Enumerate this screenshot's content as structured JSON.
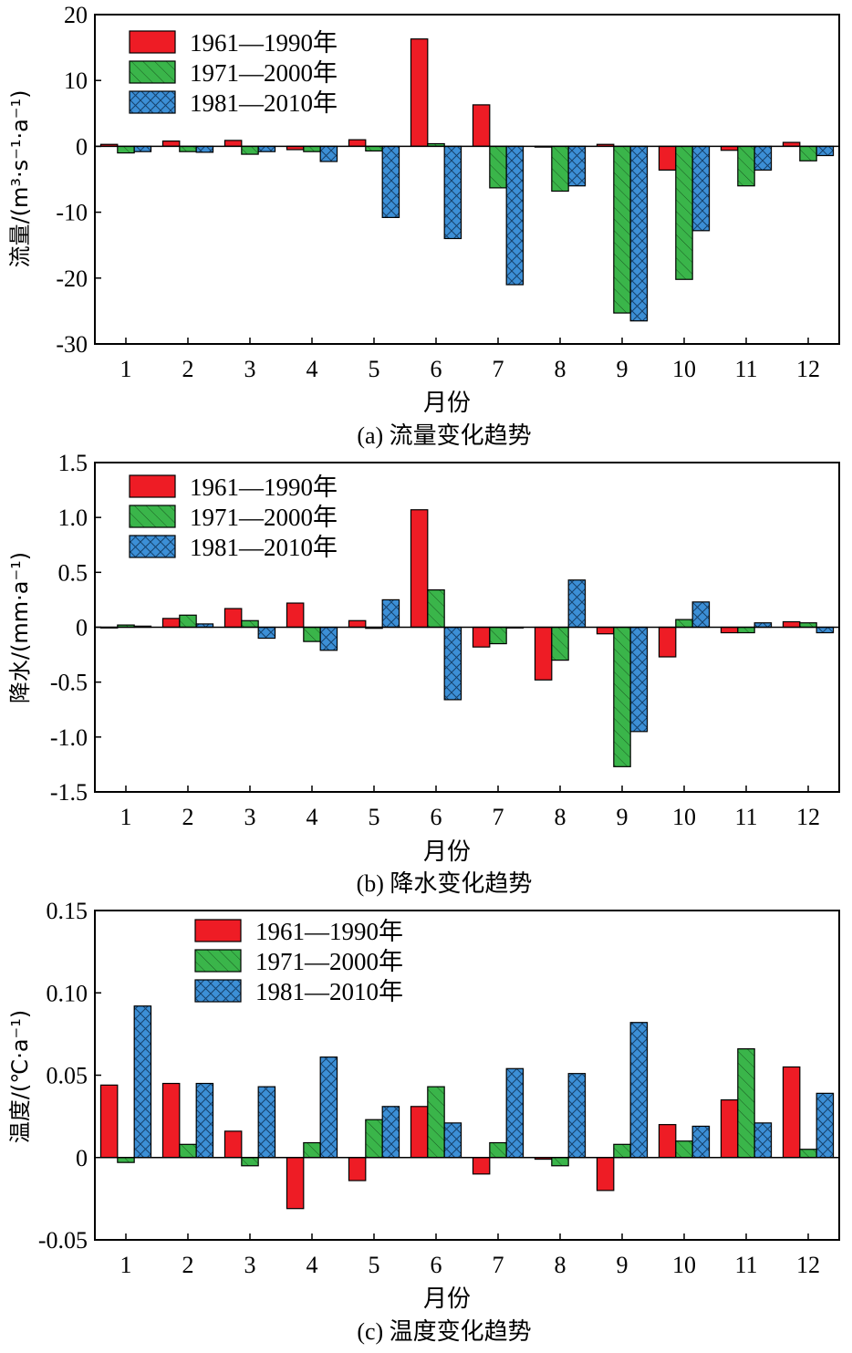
{
  "colors": {
    "s1": "#ee1c25",
    "s2": "#3ab54a",
    "s3": "#3c8fd6",
    "axis": "#000000"
  },
  "chart_data": [
    {
      "type": "bar",
      "title": "",
      "caption": "(a) 流量变化趋势",
      "xlabel": "月份",
      "ylabel": "流量/(m³·s⁻¹·a⁻¹)",
      "categories": [
        "1",
        "2",
        "3",
        "4",
        "5",
        "6",
        "7",
        "8",
        "9",
        "10",
        "11",
        "12"
      ],
      "ylim": [
        -30,
        20
      ],
      "yticks": [
        20,
        10,
        0,
        -10,
        -20,
        -30
      ],
      "ytick_labels": [
        "20",
        "10",
        "0",
        "-10",
        "-20",
        "-30"
      ],
      "legend_position": "top-left",
      "series": [
        {
          "name": "1961—1990年",
          "pattern": "solid",
          "values": [
            0.3,
            0.8,
            0.9,
            -0.5,
            1.0,
            16.3,
            6.3,
            -0.1,
            0.3,
            -3.6,
            -0.6,
            0.6
          ]
        },
        {
          "name": "1971—2000年",
          "pattern": "hatch",
          "values": [
            -1.0,
            -0.8,
            -1.2,
            -0.8,
            -0.7,
            0.4,
            -6.3,
            -6.8,
            -25.3,
            -20.2,
            -6.0,
            -2.2
          ]
        },
        {
          "name": "1981—2010年",
          "pattern": "crosshatch",
          "values": [
            -0.8,
            -0.9,
            -0.8,
            -2.3,
            -10.8,
            -14.0,
            -21.0,
            -6.0,
            -26.5,
            -12.8,
            -3.6,
            -1.4
          ]
        }
      ]
    },
    {
      "type": "bar",
      "title": "",
      "caption": "(b) 降水变化趋势",
      "xlabel": "月份",
      "ylabel": "降水/(mm·a⁻¹)",
      "categories": [
        "1",
        "2",
        "3",
        "4",
        "5",
        "6",
        "7",
        "8",
        "9",
        "10",
        "11",
        "12"
      ],
      "ylim": [
        -1.5,
        1.5
      ],
      "yticks": [
        1.5,
        1.0,
        0.5,
        0,
        -0.5,
        -1.0,
        -1.5
      ],
      "ytick_labels": [
        "1.5",
        "1.0",
        "0.5",
        "0",
        "-0.5",
        "-1.0",
        "-1.5"
      ],
      "legend_position": "top-left",
      "series": [
        {
          "name": "1961—1990年",
          "pattern": "solid",
          "values": [
            0.0,
            0.08,
            0.17,
            0.22,
            0.06,
            1.07,
            -0.18,
            -0.48,
            -0.06,
            -0.27,
            -0.05,
            0.05
          ]
        },
        {
          "name": "1971—2000年",
          "pattern": "hatch",
          "values": [
            0.02,
            0.11,
            0.06,
            -0.13,
            -0.01,
            0.34,
            -0.15,
            -0.3,
            -1.27,
            0.07,
            -0.05,
            0.04
          ]
        },
        {
          "name": "1981—2010年",
          "pattern": "crosshatch",
          "values": [
            0.01,
            0.03,
            -0.1,
            -0.21,
            0.25,
            -0.66,
            0.0,
            0.43,
            -0.95,
            0.23,
            0.04,
            -0.05
          ]
        }
      ]
    },
    {
      "type": "bar",
      "title": "",
      "caption": "(c) 温度变化趋势",
      "xlabel": "月份",
      "ylabel": "温度/(℃·a⁻¹)",
      "categories": [
        "1",
        "2",
        "3",
        "4",
        "5",
        "6",
        "7",
        "8",
        "9",
        "10",
        "11",
        "12"
      ],
      "ylim": [
        -0.05,
        0.15
      ],
      "yticks": [
        0.15,
        0.1,
        0.05,
        0,
        -0.05
      ],
      "ytick_labels": [
        "0.15",
        "0.10",
        "0.05",
        "0",
        "-0.05"
      ],
      "legend_position": "top-center",
      "series": [
        {
          "name": "1961—1990年",
          "pattern": "solid",
          "values": [
            0.044,
            0.045,
            0.016,
            -0.031,
            -0.014,
            0.031,
            -0.01,
            -0.001,
            -0.02,
            0.02,
            0.035,
            0.055
          ]
        },
        {
          "name": "1971—2000年",
          "pattern": "hatch",
          "values": [
            -0.003,
            0.008,
            -0.005,
            0.009,
            0.023,
            0.043,
            0.009,
            -0.005,
            0.008,
            0.01,
            0.066,
            0.005
          ]
        },
        {
          "name": "1981—2010年",
          "pattern": "crosshatch",
          "values": [
            0.092,
            0.045,
            0.043,
            0.061,
            0.031,
            0.021,
            0.054,
            0.051,
            0.082,
            0.019,
            0.021,
            0.039
          ]
        }
      ]
    }
  ]
}
